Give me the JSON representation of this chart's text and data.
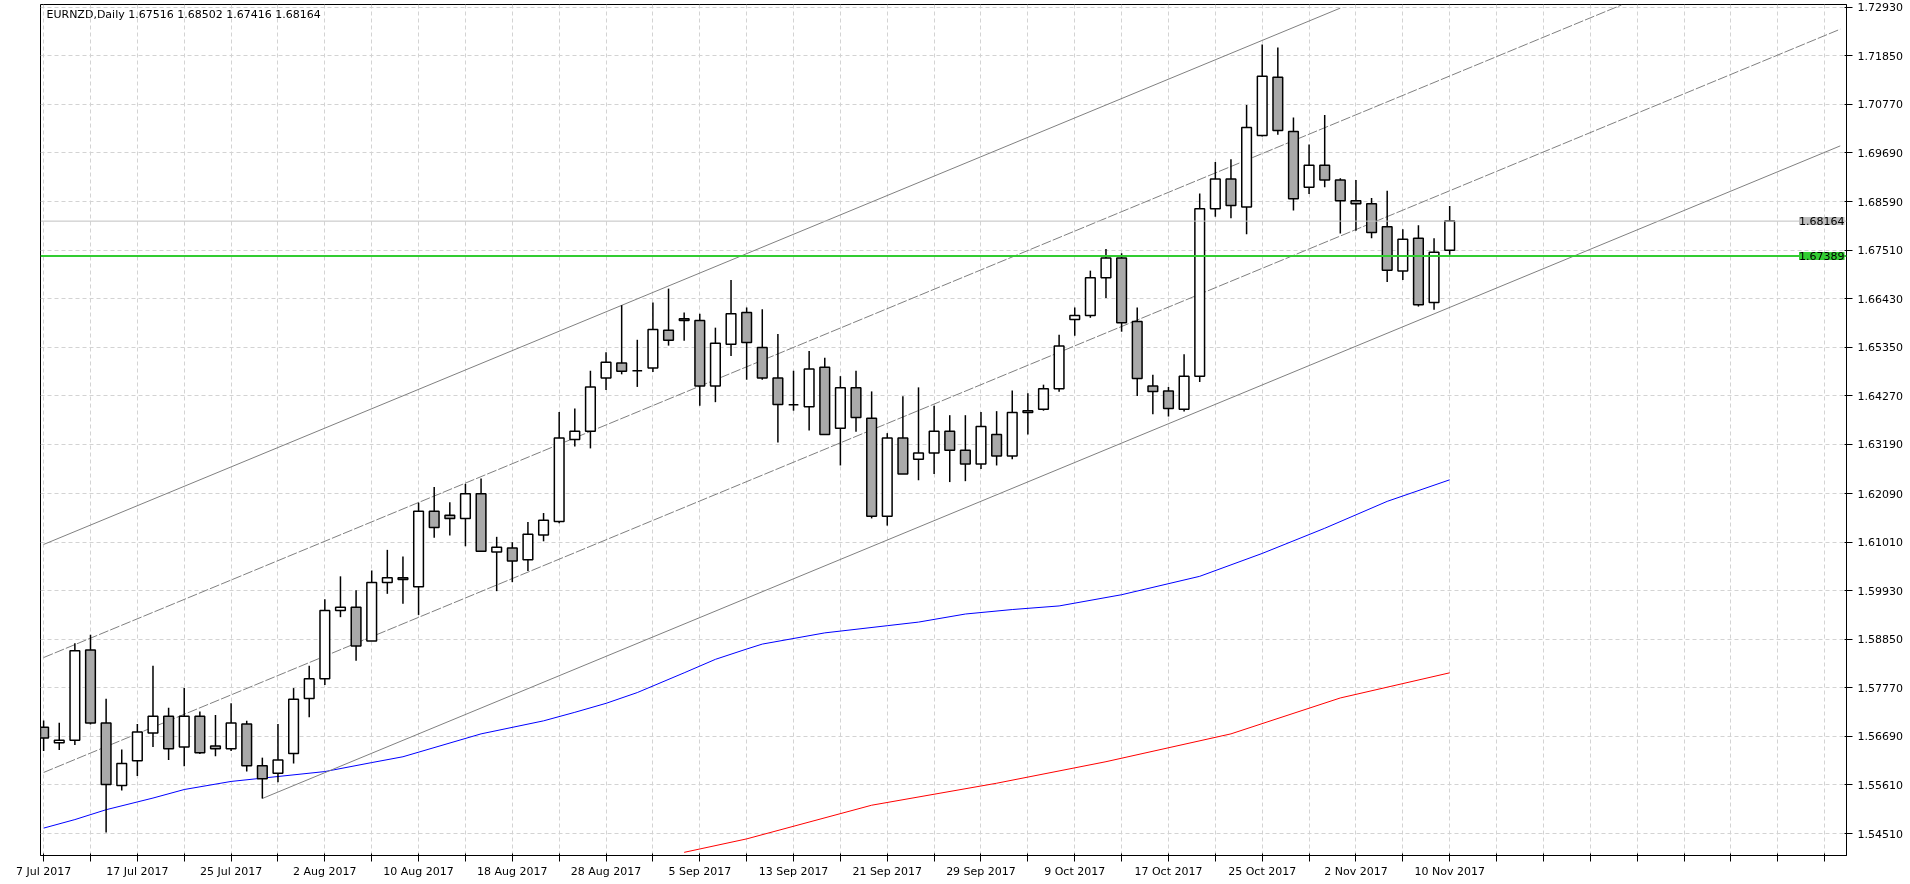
{
  "chart_data": {
    "type": "candlestick",
    "title": "EURNZD,Daily  1.67516 1.68502 1.67416 1.68164",
    "colors": [
      "#a9a9a9",
      "#ffffff",
      "#ffffff",
      "#a9a9a9",
      "#a9a9a9",
      "#ffffff",
      "#ffffff",
      "#ffffff",
      "#a9a9a9",
      "#ffffff",
      "#a9a9a9",
      "#a9a9a9",
      "#ffffff",
      "#a9a9a9",
      "#a9a9a9",
      "#ffffff",
      "#ffffff",
      "#ffffff",
      "#ffffff",
      "#ffffff",
      "#a9a9a9",
      "#ffffff",
      "#ffffff",
      "#a9a9a9",
      "#ffffff",
      "#a9a9a9",
      "#a9a9a9",
      "#ffffff",
      "#a9a9a9",
      "#ffffff",
      "#a9a9a9",
      "#ffffff",
      "#ffffff",
      "#ffffff",
      "#ffffff",
      "#ffffff",
      "#ffffff",
      "#a9a9a9",
      "#000000",
      "#ffffff",
      "#a9a9a9",
      "#a9a9a9",
      "#a9a9a9",
      "#ffffff",
      "#ffffff",
      "#a9a9a9",
      "#a9a9a9",
      "#a9a9a9",
      "#000000",
      "#ffffff",
      "#a9a9a9",
      "#ffffff",
      "#a9a9a9",
      "#a9a9a9",
      "#ffffff",
      "#a9a9a9",
      "#ffffff",
      "#ffffff",
      "#a9a9a9",
      "#a9a9a9",
      "#ffffff",
      "#a9a9a9",
      "#ffffff",
      "#ffffff",
      "#ffffff",
      "#ffffff",
      "#ffffff",
      "#ffffff",
      "#ffffff",
      "#a9a9a9",
      "#a9a9a9",
      "#a9a9a9",
      "#a9a9a9",
      "#ffffff",
      "#ffffff",
      "#ffffff",
      "#a9a9a9",
      "#ffffff",
      "#ffffff",
      "#a9a9a9",
      "#a9a9a9",
      "#ffffff",
      "#a9a9a9",
      "#a9a9a9",
      "#a9a9a9",
      "#a9a9a9",
      "#a9a9a9",
      "#ffffff",
      "#a9a9a9",
      "#ffffff",
      "#ffffff",
      null,
      null,
      null,
      null,
      null,
      null,
      null,
      null,
      null,
      null,
      null,
      null,
      null,
      null,
      null,
      null,
      null,
      null,
      null,
      null,
      null,
      null,
      null,
      null,
      null
    ],
    "categories": [
      "7 Jul 2017",
      null,
      null,
      null,
      null,
      null,
      "17 Jul 2017",
      null,
      null,
      null,
      null,
      null,
      "25 Jul 2017",
      null,
      null,
      null,
      null,
      null,
      "2 Aug 2017",
      null,
      null,
      null,
      null,
      null,
      "10 Aug 2017",
      null,
      null,
      null,
      null,
      null,
      "18 Aug 2017",
      null,
      null,
      null,
      null,
      null,
      "28 Aug 2017",
      null,
      null,
      null,
      null,
      null,
      "5 Sep 2017",
      null,
      null,
      null,
      null,
      null,
      "13 Sep 2017",
      null,
      null,
      null,
      null,
      null,
      "21 Sep 2017",
      null,
      null,
      null,
      null,
      null,
      "29 Sep 2017",
      null,
      null,
      null,
      null,
      null,
      "9 Oct 2017",
      null,
      null,
      null,
      null,
      null,
      "17 Oct 2017",
      null,
      null,
      null,
      null,
      null,
      "25 Oct 2017",
      null,
      null,
      null,
      null,
      null,
      "2 Nov 2017",
      null,
      null,
      null,
      null,
      null,
      "10 Nov 2017",
      null,
      null,
      null,
      null,
      null,
      null,
      null,
      null,
      null,
      null,
      null,
      null,
      null,
      null,
      null,
      null,
      null,
      null,
      null,
      null,
      null,
      null,
      null,
      null,
      null
    ],
    "ohlc": [
      [
        1.5689,
        1.5704,
        1.5636,
        1.5665
      ],
      [
        1.5654,
        1.5699,
        1.5638,
        1.566
      ],
      [
        1.566,
        1.5876,
        1.5649,
        1.5859
      ],
      [
        1.5861,
        1.5895,
        1.5695,
        1.5698
      ],
      [
        1.5698,
        1.5752,
        1.5454,
        1.5561
      ],
      [
        1.5559,
        1.5639,
        1.5548,
        1.5608
      ],
      [
        1.5614,
        1.5696,
        1.558,
        1.5678
      ],
      [
        1.5676,
        1.5826,
        1.5645,
        1.5713
      ],
      [
        1.5713,
        1.5732,
        1.5616,
        1.5641
      ],
      [
        1.5645,
        1.5776,
        1.5602,
        1.5713
      ],
      [
        1.5713,
        1.5724,
        1.5629,
        1.5632
      ],
      [
        1.5647,
        1.5716,
        1.5624,
        1.5641
      ],
      [
        1.5641,
        1.5742,
        1.5636,
        1.5698
      ],
      [
        1.5696,
        1.5703,
        1.559,
        1.5603
      ],
      [
        1.5603,
        1.5621,
        1.553,
        1.5574
      ],
      [
        1.5586,
        1.5696,
        1.5566,
        1.5616
      ],
      [
        1.563,
        1.5776,
        1.5608,
        1.5751
      ],
      [
        1.5753,
        1.5826,
        1.5711,
        1.5797
      ],
      [
        1.5797,
        1.5974,
        1.5783,
        1.5949
      ],
      [
        1.5949,
        1.6025,
        1.5934,
        1.5956
      ],
      [
        1.5956,
        1.5994,
        1.5837,
        1.587
      ],
      [
        1.5881,
        1.6038,
        1.5881,
        1.6011
      ],
      [
        1.6011,
        1.6084,
        1.5986,
        1.6022
      ],
      [
        1.6022,
        1.6069,
        1.5964,
        1.6018
      ],
      [
        1.6002,
        1.6189,
        1.5939,
        1.617
      ],
      [
        1.617,
        1.6224,
        1.6111,
        1.6134
      ],
      [
        1.6161,
        1.619,
        1.6116,
        1.6154
      ],
      [
        1.6154,
        1.6231,
        1.6092,
        1.6209
      ],
      [
        1.6209,
        1.6243,
        1.6081,
        1.6081
      ],
      [
        1.6079,
        1.6113,
        1.5992,
        1.609
      ],
      [
        1.6088,
        1.6101,
        1.6012,
        1.6059
      ],
      [
        1.6062,
        1.6146,
        1.6037,
        1.6119
      ],
      [
        1.6117,
        1.6166,
        1.6103,
        1.615
      ],
      [
        1.6147,
        1.6391,
        1.6143,
        1.6333
      ],
      [
        1.633,
        1.6399,
        1.6314,
        1.6348
      ],
      [
        1.6348,
        1.6483,
        1.631,
        1.6447
      ],
      [
        1.6467,
        1.6524,
        1.644,
        1.6502
      ],
      [
        1.65,
        1.6629,
        1.6475,
        1.6482
      ],
      [
        1.6483,
        1.6552,
        1.6447,
        1.6483
      ],
      [
        1.6489,
        1.6635,
        1.648,
        1.6575
      ],
      [
        1.6573,
        1.6666,
        1.6539,
        1.6551
      ],
      [
        1.6599,
        1.6613,
        1.655,
        1.6595
      ],
      [
        1.6595,
        1.661,
        1.6405,
        1.6449
      ],
      [
        1.6449,
        1.6579,
        1.6413,
        1.6544
      ],
      [
        1.6542,
        1.6685,
        1.6516,
        1.661
      ],
      [
        1.6613,
        1.6624,
        1.6463,
        1.6546
      ],
      [
        1.6535,
        1.662,
        1.6463,
        1.6467
      ],
      [
        1.6467,
        1.6565,
        1.6323,
        1.6408
      ],
      [
        1.6407,
        1.6483,
        1.6394,
        1.6407
      ],
      [
        1.6403,
        1.6527,
        1.635,
        1.6487
      ],
      [
        1.6491,
        1.6512,
        1.6341,
        1.6341
      ],
      [
        1.6355,
        1.6471,
        1.6272,
        1.6445
      ],
      [
        1.6445,
        1.6483,
        1.6347,
        1.6379
      ],
      [
        1.6377,
        1.6437,
        1.6154,
        1.6159
      ],
      [
        1.6159,
        1.6344,
        1.6138,
        1.6333
      ],
      [
        1.6333,
        1.6426,
        1.6253,
        1.6253
      ],
      [
        1.6286,
        1.6446,
        1.6239,
        1.63
      ],
      [
        1.63,
        1.6405,
        1.6253,
        1.6348
      ],
      [
        1.6348,
        1.6384,
        1.6235,
        1.6306
      ],
      [
        1.6306,
        1.6384,
        1.6237,
        1.6275
      ],
      [
        1.6275,
        1.6391,
        1.6264,
        1.6359
      ],
      [
        1.6341,
        1.6393,
        1.6272,
        1.6293
      ],
      [
        1.6293,
        1.6439,
        1.6286,
        1.639
      ],
      [
        1.639,
        1.6433,
        1.6341,
        1.6394
      ],
      [
        1.6397,
        1.6452,
        1.6394,
        1.6443
      ],
      [
        1.6443,
        1.6563,
        1.6436,
        1.6538
      ],
      [
        1.6597,
        1.6624,
        1.6561,
        1.6606
      ],
      [
        1.6606,
        1.6706,
        1.6601,
        1.669
      ],
      [
        1.669,
        1.6754,
        1.6645,
        1.6734
      ],
      [
        1.6734,
        1.6745,
        1.657,
        1.659
      ],
      [
        1.6593,
        1.6624,
        1.6427,
        1.6466
      ],
      [
        1.6449,
        1.6474,
        1.6386,
        1.6437
      ],
      [
        1.6438,
        1.6447,
        1.6381,
        1.6399
      ],
      [
        1.6397,
        1.652,
        1.6392,
        1.6471
      ],
      [
        1.6471,
        1.6878,
        1.6458,
        1.6844
      ],
      [
        1.6844,
        1.6948,
        1.6826,
        1.691
      ],
      [
        1.691,
        1.6954,
        1.6823,
        1.6851
      ],
      [
        1.6848,
        1.7075,
        1.6787,
        1.7025
      ],
      [
        1.7007,
        1.721,
        1.7005,
        1.7139
      ],
      [
        1.7137,
        1.7203,
        1.7009,
        1.7018
      ],
      [
        1.7016,
        1.7047,
        1.684,
        1.6866
      ],
      [
        1.6892,
        1.6987,
        1.6877,
        1.6941
      ],
      [
        1.6941,
        1.7053,
        1.6892,
        1.6908
      ],
      [
        1.6908,
        1.6912,
        1.6789,
        1.6862
      ],
      [
        1.6862,
        1.6908,
        1.6795,
        1.6855
      ],
      [
        1.6855,
        1.6868,
        1.6778,
        1.6791
      ],
      [
        1.6804,
        1.6884,
        1.6681,
        1.6707
      ],
      [
        1.6705,
        1.6798,
        1.6685,
        1.6776
      ],
      [
        1.6778,
        1.6807,
        1.6626,
        1.663
      ],
      [
        1.6635,
        1.6778,
        1.6619,
        1.6747
      ],
      [
        1.67516,
        1.68502,
        1.67416,
        1.68164
      ],
      null,
      null,
      null,
      null,
      null,
      null,
      null,
      null,
      null,
      null,
      null,
      null,
      null,
      null,
      null,
      null,
      null,
      null,
      null,
      null,
      null,
      null,
      null,
      null,
      null
    ],
    "series": [
      {
        "type": "line",
        "color": "#0000ff",
        "values": [
          1.5464,
          null,
          1.5483,
          null,
          1.5505,
          null,
          null,
          1.5531,
          null,
          1.555,
          null,
          null,
          1.5568,
          null,
          null,
          null,
          null,
          null,
          1.559,
          null,
          null,
          1.561,
          null,
          1.5623,
          null,
          null,
          null,
          null,
          1.5674,
          null,
          null,
          null,
          1.5703,
          null,
          1.5722,
          null,
          1.5742,
          null,
          1.5766,
          null,
          null,
          1.581,
          null,
          1.584,
          null,
          1.5863,
          1.5874,
          null,
          null,
          null,
          1.5899,
          null,
          null,
          null,
          1.5915,
          null,
          1.5923,
          null,
          null,
          1.5941,
          null,
          null,
          1.5951,
          null,
          null,
          1.5959,
          null,
          null,
          null,
          1.5984,
          null,
          null,
          null,
          null,
          1.6025,
          null,
          null,
          null,
          1.6076,
          null,
          null,
          null,
          1.6132,
          null,
          null,
          null,
          1.6192,
          null,
          null,
          null,
          1.624,
          null,
          null,
          null,
          null,
          null,
          null,
          null,
          null,
          null,
          null,
          null,
          null,
          null,
          null,
          null,
          null,
          null,
          null,
          null,
          null,
          null,
          null,
          null,
          null,
          null
        ]
      },
      {
        "type": "line",
        "color": "#ff0000",
        "values": [
          null,
          null,
          null,
          null,
          null,
          null,
          null,
          null,
          null,
          null,
          null,
          null,
          null,
          null,
          null,
          null,
          null,
          null,
          null,
          null,
          null,
          null,
          null,
          null,
          null,
          null,
          null,
          null,
          null,
          null,
          null,
          null,
          null,
          null,
          null,
          null,
          null,
          null,
          null,
          null,
          null,
          1.541,
          null,
          null,
          null,
          1.544,
          null,
          null,
          null,
          null,
          null,
          null,
          null,
          1.5515,
          null,
          null,
          null,
          null,
          null,
          null,
          null,
          1.5564,
          null,
          null,
          null,
          null,
          null,
          null,
          1.5612,
          null,
          null,
          null,
          null,
          null,
          null,
          null,
          1.5674,
          null,
          null,
          null,
          null,
          null,
          null,
          1.5754,
          null,
          null,
          null,
          null,
          null,
          null,
          1.581,
          null,
          null,
          null,
          null,
          null,
          null,
          null,
          null,
          null,
          null,
          null,
          null,
          null,
          null,
          null,
          null,
          null,
          null,
          null,
          null,
          null,
          null,
          null,
          null,
          null
        ]
      },
      {
        "type": "line",
        "color": "#808080",
        "line_style": "solid",
        "values": [
          1.6096,
          null,
          null,
          null,
          null,
          null,
          null,
          null,
          null,
          null,
          null,
          null,
          null,
          null,
          null,
          null,
          null,
          null,
          null,
          null,
          null,
          null,
          null,
          null,
          null,
          null,
          null,
          null,
          null,
          null,
          null,
          null,
          null,
          null,
          null,
          null,
          null,
          null,
          null,
          null,
          null,
          null,
          null,
          null,
          null,
          null,
          null,
          null,
          null,
          null,
          null,
          null,
          null,
          null,
          null,
          null,
          null,
          null,
          null,
          null,
          null,
          null,
          null,
          null,
          null,
          null,
          null,
          null,
          null,
          null,
          null,
          null,
          null,
          null,
          null,
          null,
          null,
          null,
          null,
          null,
          null,
          null,
          null,
          1.7291,
          null,
          null,
          null,
          null,
          null,
          null,
          null,
          null,
          null,
          null,
          null,
          null,
          null,
          null,
          null,
          null,
          null,
          null,
          null,
          null,
          null,
          null,
          null,
          null,
          null,
          null,
          null,
          null,
          null,
          null,
          null,
          null
        ]
      },
      {
        "type": "line",
        "color": "#808080",
        "line_style": "dashed",
        "values": [
          1.5844,
          null,
          null,
          null,
          null,
          null,
          null,
          null,
          null,
          null,
          null,
          null,
          null,
          null,
          null,
          null,
          null,
          null,
          null,
          null,
          null,
          null,
          null,
          null,
          null,
          null,
          null,
          null,
          null,
          null,
          null,
          null,
          null,
          null,
          null,
          null,
          null,
          null,
          null,
          null,
          null,
          null,
          null,
          null,
          null,
          null,
          null,
          null,
          null,
          null,
          null,
          null,
          null,
          null,
          null,
          null,
          null,
          null,
          null,
          null,
          null,
          null,
          null,
          null,
          null,
          null,
          null,
          null,
          null,
          null,
          null,
          null,
          null,
          null,
          null,
          null,
          null,
          null,
          null,
          null,
          null,
          null,
          null,
          null,
          null,
          null,
          null,
          null,
          null,
          null,
          null,
          null,
          null,
          null,
          null,
          null,
          null,
          null,
          null,
          null,
          null,
          1.7298,
          null,
          null,
          null,
          null,
          null,
          null,
          null,
          null,
          null,
          null,
          null,
          null,
          null,
          null
        ]
      },
      {
        "type": "line",
        "color": "#808080",
        "line_style": "dashed",
        "values": [
          1.5588,
          null,
          null,
          null,
          null,
          null,
          null,
          null,
          null,
          null,
          null,
          null,
          null,
          null,
          null,
          null,
          null,
          null,
          null,
          null,
          null,
          null,
          null,
          null,
          null,
          null,
          null,
          null,
          null,
          null,
          null,
          null,
          null,
          null,
          null,
          null,
          null,
          null,
          null,
          null,
          null,
          null,
          null,
          null,
          null,
          null,
          null,
          null,
          null,
          null,
          null,
          null,
          null,
          null,
          null,
          null,
          null,
          null,
          null,
          null,
          null,
          null,
          null,
          null,
          null,
          null,
          null,
          null,
          null,
          null,
          null,
          null,
          null,
          null,
          null,
          null,
          null,
          null,
          null,
          null,
          null,
          null,
          null,
          null,
          null,
          null,
          null,
          null,
          null,
          null,
          null,
          null,
          null,
          null,
          null,
          null,
          null,
          null,
          null,
          null,
          null,
          null,
          null,
          null,
          null,
          null,
          null,
          null,
          null,
          null,
          null,
          null,
          null,
          null,
          null,
          1.7244
        ]
      },
      {
        "type": "line",
        "color": "#808080",
        "line_style": "solid",
        "values": [
          null,
          null,
          null,
          null,
          null,
          null,
          null,
          null,
          null,
          null,
          null,
          null,
          null,
          null,
          1.553,
          null,
          null,
          null,
          null,
          null,
          null,
          null,
          null,
          null,
          null,
          null,
          null,
          null,
          null,
          null,
          null,
          null,
          null,
          null,
          null,
          null,
          null,
          null,
          null,
          null,
          null,
          null,
          null,
          null,
          null,
          null,
          null,
          null,
          null,
          null,
          null,
          null,
          null,
          null,
          null,
          null,
          null,
          null,
          null,
          null,
          null,
          null,
          null,
          null,
          null,
          null,
          null,
          null,
          null,
          null,
          null,
          null,
          null,
          null,
          null,
          null,
          null,
          null,
          null,
          null,
          null,
          null,
          null,
          null,
          null,
          null,
          null,
          null,
          null,
          null,
          null,
          null,
          null,
          null,
          null,
          null,
          null,
          null,
          null,
          null,
          null,
          null,
          null,
          null,
          null,
          null,
          null,
          null,
          null,
          null,
          null,
          null,
          null,
          null,
          null,
          1.6984
        ]
      }
    ],
    "ref_lines": [
      {
        "axis": "y",
        "value": 1.68164,
        "label": "1.68164",
        "color": "#c0c0c0"
      },
      {
        "axis": "y",
        "value": 1.67389,
        "label": "1.67389",
        "color": "#32cd32"
      }
    ],
    "ylim": [
      1.5403,
      1.7299
    ],
    "yticks": [
      {
        "value": 1.5451,
        "label": "1.54510"
      },
      {
        "value": 1.5561,
        "label": "1.55610"
      },
      {
        "value": 1.5669,
        "label": "1.56690"
      },
      {
        "value": 1.5777,
        "label": "1.57770"
      },
      {
        "value": 1.5885,
        "label": "1.58850"
      },
      {
        "value": 1.5993,
        "label": "1.59930"
      },
      {
        "value": 1.6101,
        "label": "1.61010"
      },
      {
        "value": 1.6209,
        "label": "1.62090"
      },
      {
        "value": 1.6319,
        "label": "1.63190"
      },
      {
        "value": 1.6427,
        "label": "1.64270"
      },
      {
        "value": 1.6535,
        "label": "1.65350"
      },
      {
        "value": 1.6643,
        "label": "1.66430"
      },
      {
        "value": 1.6751,
        "label": "1.67510"
      },
      {
        "value": 1.6859,
        "label": "1.68590"
      },
      {
        "value": 1.6969,
        "label": "1.69690"
      },
      {
        "value": 1.7077,
        "label": "1.70770"
      },
      {
        "value": 1.7185,
        "label": "1.71850"
      },
      {
        "value": 1.7293,
        "label": "1.72930"
      }
    ],
    "grid": true
  }
}
